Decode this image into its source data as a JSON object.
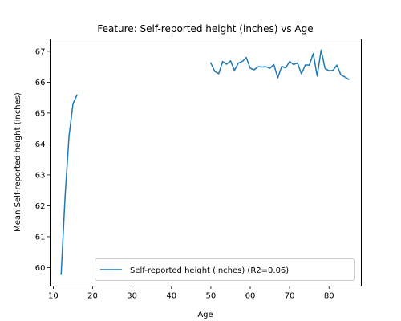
{
  "chart_data": {
    "type": "line",
    "title": "Feature: Self-reported height (inches) vs Age",
    "xlabel": "Age",
    "ylabel": "Mean Self-reported height (inches)",
    "xlim": [
      9.2,
      88.2
    ],
    "ylim": [
      59.4,
      67.4
    ],
    "xticks": [
      10,
      20,
      30,
      40,
      50,
      60,
      70,
      80
    ],
    "yticks": [
      60,
      61,
      62,
      63,
      64,
      65,
      66,
      67
    ],
    "grid": false,
    "legend_position": "lower right",
    "series": [
      {
        "name": "Self-reported height (inches) (R2=0.06)",
        "color": "#1f77b4",
        "segments": [
          [
            [
              12,
              59.78
            ],
            [
              13,
              62.3
            ],
            [
              14,
              64.25
            ],
            [
              15,
              65.3
            ],
            [
              16,
              65.58
            ]
          ],
          [
            [
              50,
              66.62
            ],
            [
              51,
              66.35
            ],
            [
              52,
              66.27
            ],
            [
              53,
              66.67
            ],
            [
              54,
              66.58
            ],
            [
              55,
              66.69
            ],
            [
              56,
              66.38
            ],
            [
              57,
              66.62
            ],
            [
              58,
              66.67
            ],
            [
              59,
              66.8
            ],
            [
              60,
              66.45
            ],
            [
              61,
              66.4
            ],
            [
              62,
              66.5
            ],
            [
              63,
              66.49
            ],
            [
              64,
              66.5
            ],
            [
              65,
              66.45
            ],
            [
              66,
              66.57
            ],
            [
              67,
              66.14
            ],
            [
              68,
              66.51
            ],
            [
              69,
              66.46
            ],
            [
              70,
              66.67
            ],
            [
              71,
              66.57
            ],
            [
              72,
              66.62
            ],
            [
              73,
              66.27
            ],
            [
              74,
              66.56
            ],
            [
              75,
              66.55
            ],
            [
              76,
              66.93
            ],
            [
              77,
              66.2
            ],
            [
              78,
              67.04
            ],
            [
              79,
              66.44
            ],
            [
              80,
              66.37
            ],
            [
              81,
              66.38
            ],
            [
              82,
              66.55
            ],
            [
              83,
              66.24
            ],
            [
              84,
              66.17
            ],
            [
              85,
              66.09
            ]
          ]
        ]
      }
    ]
  }
}
